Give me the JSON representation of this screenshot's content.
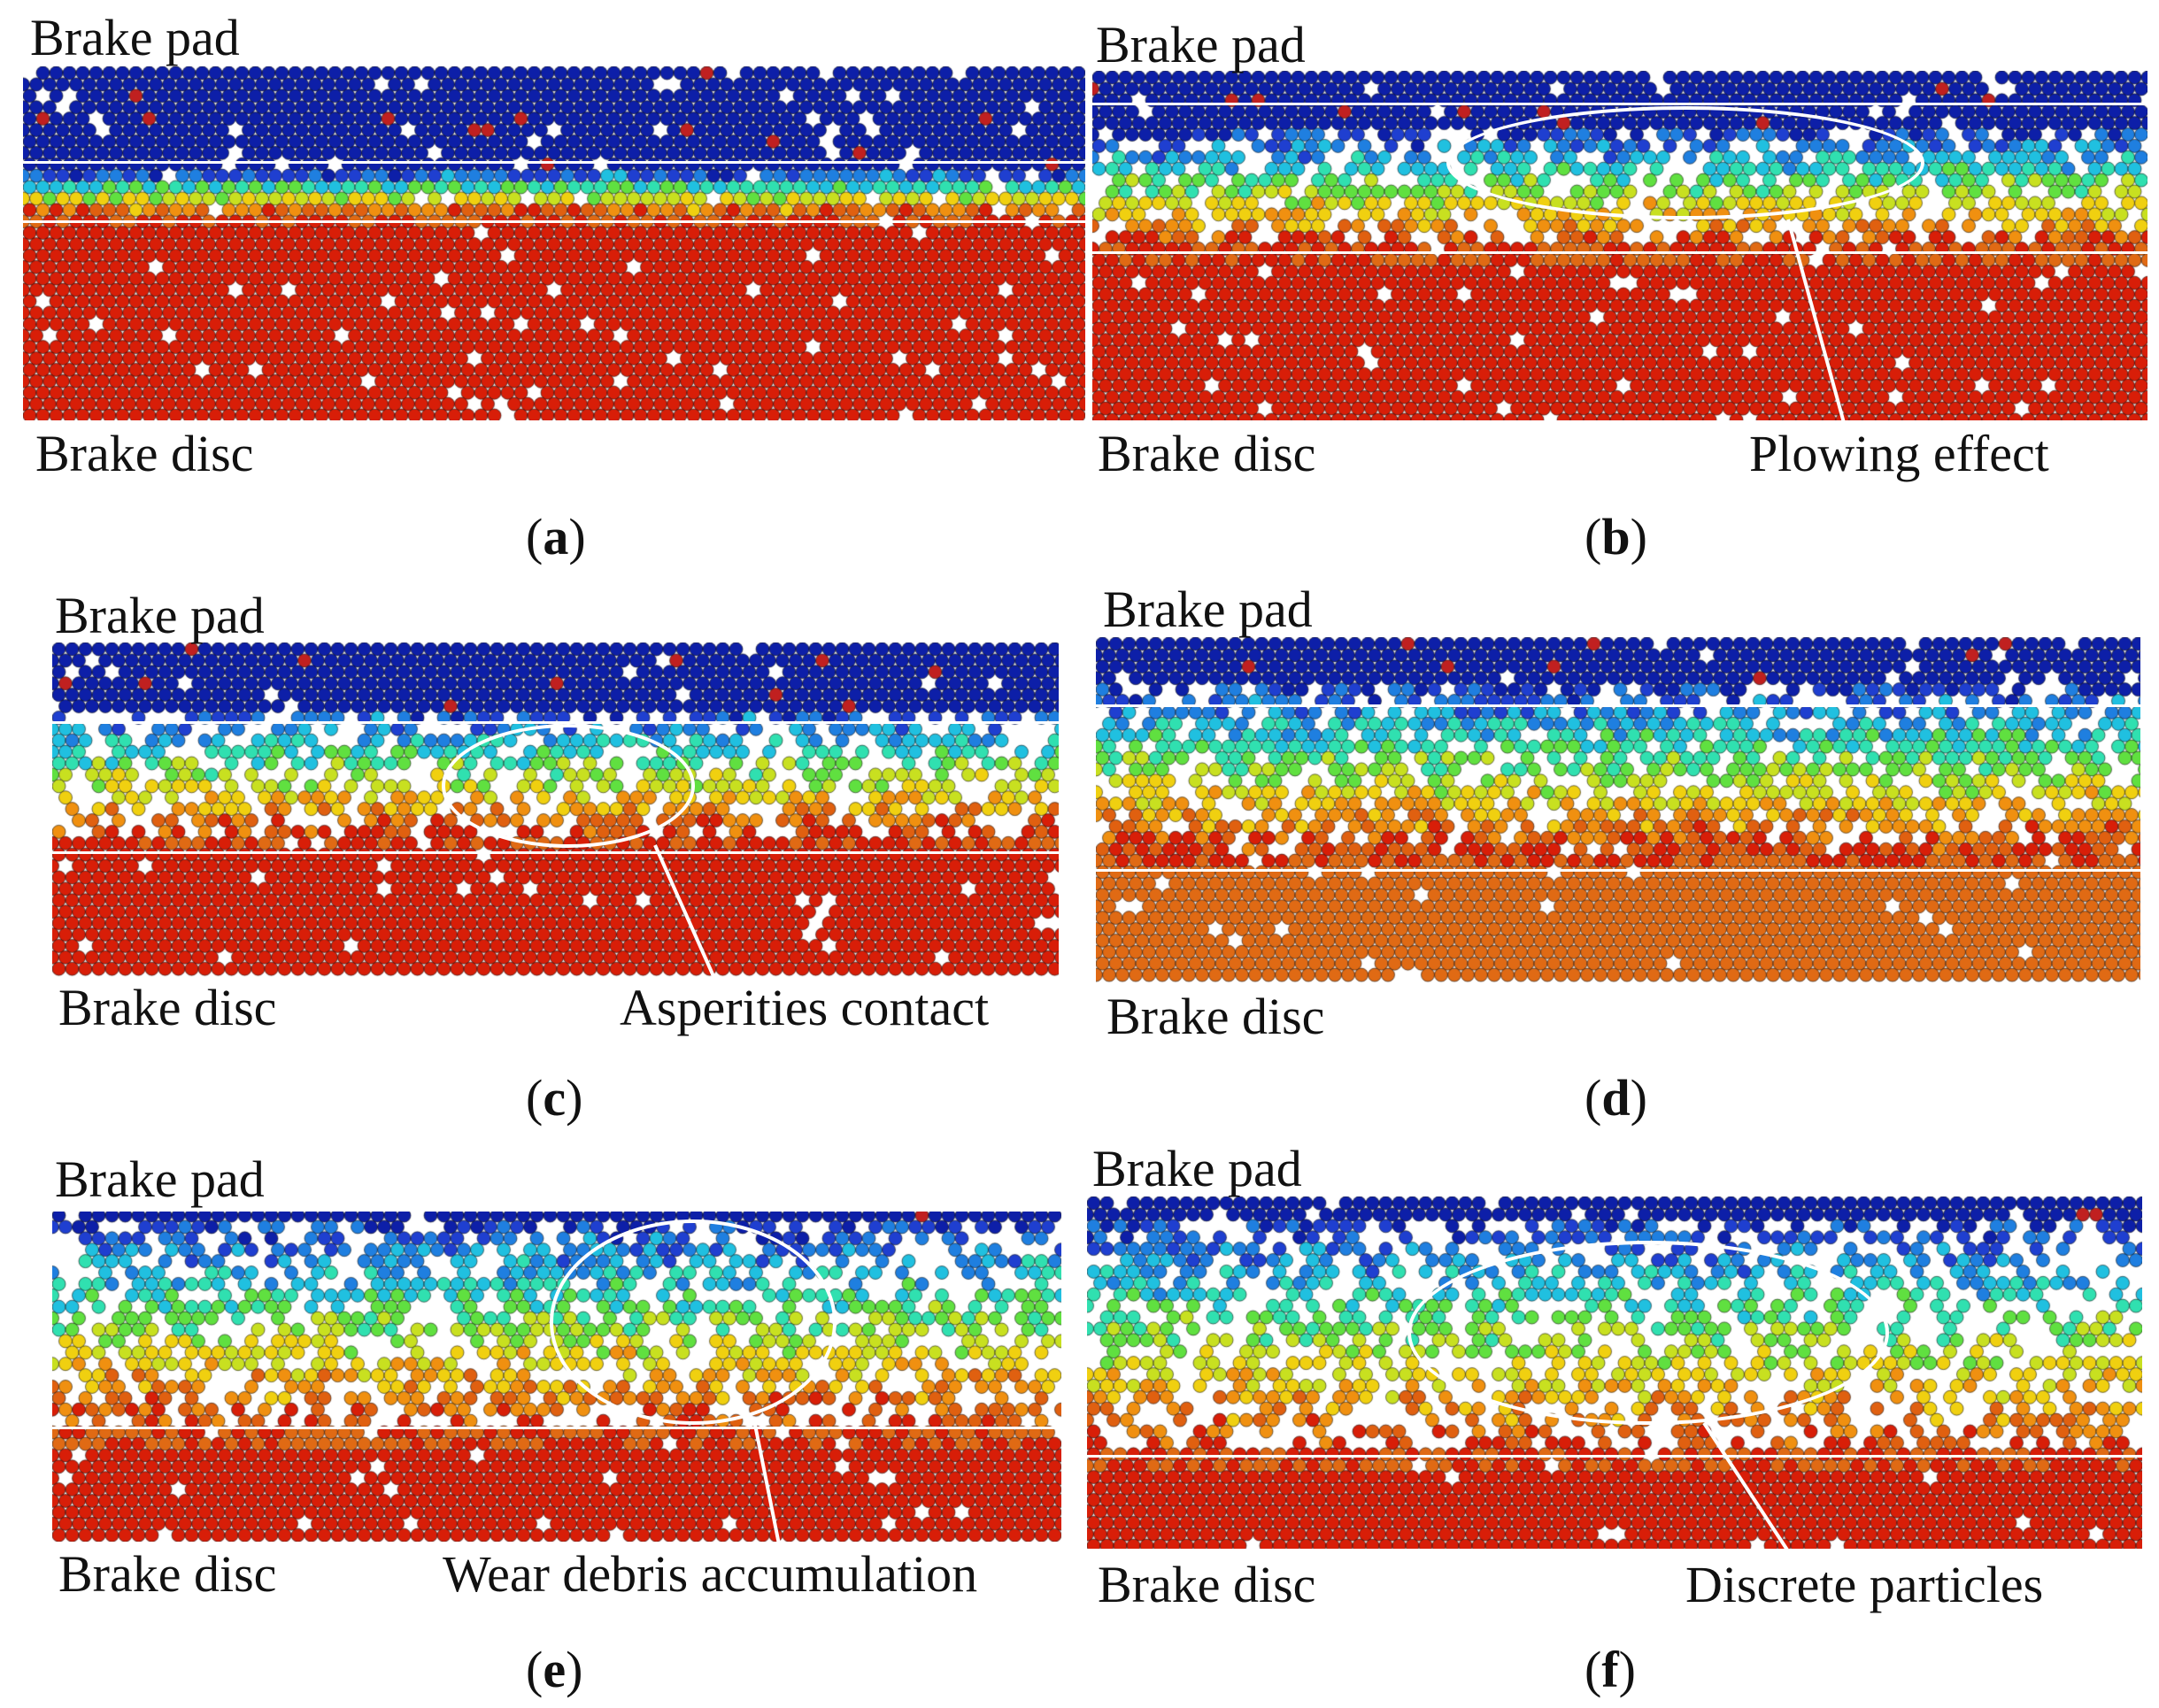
{
  "panels": [
    {
      "id": "a",
      "pad_label": "Brake pad",
      "disc_label": "Brake disc",
      "annotation": "",
      "caption": "a"
    },
    {
      "id": "b",
      "pad_label": "Brake pad",
      "disc_label": "Brake disc",
      "annotation": "Plowing effect",
      "caption": "b"
    },
    {
      "id": "c",
      "pad_label": "Brake pad",
      "disc_label": "Brake disc",
      "annotation": "Asperities contact",
      "caption": "c"
    },
    {
      "id": "d",
      "pad_label": "Brake pad",
      "disc_label": "Brake disc",
      "annotation": "",
      "caption": "d"
    },
    {
      "id": "e",
      "pad_label": "Brake pad",
      "disc_label": "Brake disc",
      "annotation": "Wear debris accumulation",
      "caption": "e"
    },
    {
      "id": "f",
      "pad_label": "Brake pad",
      "disc_label": "Brake disc",
      "annotation": "Discrete particles",
      "caption": "f"
    }
  ],
  "colors": {
    "pad": "#0d1fa8",
    "disc": "#d81e08",
    "disc_orange": "#e06a14",
    "guide_lines": "#ffffff"
  }
}
